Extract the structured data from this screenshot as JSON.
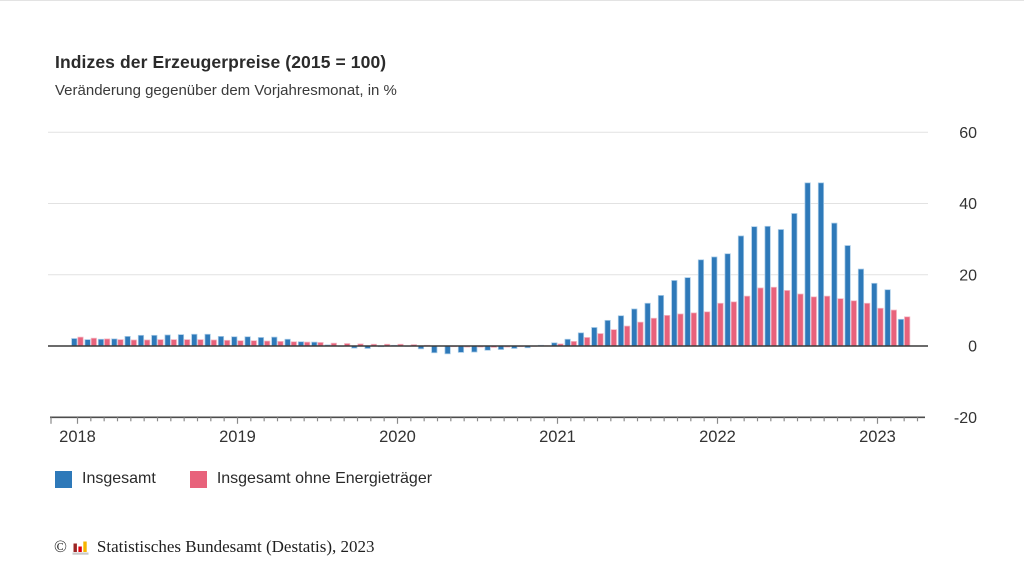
{
  "header": {
    "title": "Indizes der Erzeugerpreise (2015 = 100)",
    "subtitle": "Veränderung gegenüber dem Vorjahresmonat, in %"
  },
  "chart_data": {
    "type": "bar",
    "title": "Indizes der Erzeugerpreise (2015 = 100)",
    "subtitle": "Veränderung gegenüber dem Vorjahresmonat, in %",
    "ylabel": "",
    "xlabel": "",
    "ylim": [
      -20,
      60
    ],
    "yticks": [
      60,
      40,
      20,
      0,
      -20
    ],
    "grid": "horizontal",
    "legend_position": "bottom",
    "year_labels": [
      "2018",
      "2019",
      "2020",
      "2021",
      "2022",
      "2023"
    ],
    "x": [
      "2018-01",
      "2018-02",
      "2018-03",
      "2018-04",
      "2018-05",
      "2018-06",
      "2018-07",
      "2018-08",
      "2018-09",
      "2018-10",
      "2018-11",
      "2018-12",
      "2019-01",
      "2019-02",
      "2019-03",
      "2019-04",
      "2019-05",
      "2019-06",
      "2019-07",
      "2019-08",
      "2019-09",
      "2019-10",
      "2019-11",
      "2019-12",
      "2020-01",
      "2020-02",
      "2020-03",
      "2020-04",
      "2020-05",
      "2020-06",
      "2020-07",
      "2020-08",
      "2020-09",
      "2020-10",
      "2020-11",
      "2020-12",
      "2021-01",
      "2021-02",
      "2021-03",
      "2021-04",
      "2021-05",
      "2021-06",
      "2021-07",
      "2021-08",
      "2021-09",
      "2021-10",
      "2021-11",
      "2021-12",
      "2022-01",
      "2022-02",
      "2022-03",
      "2022-04",
      "2022-05",
      "2022-06",
      "2022-07",
      "2022-08",
      "2022-09",
      "2022-10",
      "2022-11",
      "2022-12",
      "2023-01",
      "2023-02",
      "2023-03"
    ],
    "series": [
      {
        "name": "Insgesamt",
        "color": "#2e79b9",
        "edge_color": "#a9cce8",
        "values": [
          2.1,
          1.8,
          1.9,
          2.0,
          2.7,
          3.0,
          3.0,
          3.1,
          3.2,
          3.3,
          3.3,
          2.7,
          2.6,
          2.6,
          2.4,
          2.5,
          1.9,
          1.2,
          1.1,
          0.3,
          -0.1,
          -0.6,
          -0.7,
          -0.2,
          0.2,
          -0.1,
          -0.8,
          -1.9,
          -2.2,
          -1.8,
          -1.7,
          -1.2,
          -1.0,
          -0.7,
          -0.5,
          0.2,
          0.9,
          1.9,
          3.7,
          5.2,
          7.2,
          8.5,
          10.4,
          12.0,
          14.2,
          18.4,
          19.2,
          24.2,
          25.0,
          25.9,
          30.9,
          33.5,
          33.6,
          32.7,
          37.2,
          45.8,
          45.8,
          34.5,
          28.2,
          21.6,
          17.6,
          15.8,
          7.5
        ]
      },
      {
        "name": "Insgesamt ohne Energieträger",
        "color": "#e8627b",
        "edge_color": "#f5bac6",
        "values": [
          2.5,
          2.2,
          2.0,
          1.8,
          1.7,
          1.7,
          1.8,
          1.8,
          1.8,
          1.8,
          1.7,
          1.6,
          1.5,
          1.5,
          1.4,
          1.3,
          1.2,
          1.1,
          1.0,
          0.8,
          0.7,
          0.6,
          0.5,
          0.5,
          0.5,
          0.4,
          0.2,
          0.0,
          -0.2,
          -0.3,
          -0.3,
          -0.4,
          -0.3,
          -0.2,
          -0.1,
          0.1,
          0.6,
          1.3,
          2.4,
          3.5,
          4.6,
          5.6,
          6.7,
          7.8,
          8.6,
          9.0,
          9.3,
          9.6,
          12.0,
          12.4,
          14.0,
          16.3,
          16.5,
          15.6,
          14.6,
          13.8,
          14.0,
          13.3,
          12.7,
          12.0,
          10.6,
          10.1,
          8.2
        ]
      }
    ]
  },
  "footer": {
    "copyright": "©",
    "text": "Statistisches Bundesamt (Destatis), 2023",
    "logo_colors": {
      "bar1": "#9b2423",
      "bar2": "#e3000f",
      "bar3": "#f6b500",
      "base": "#c9c9c9"
    }
  }
}
